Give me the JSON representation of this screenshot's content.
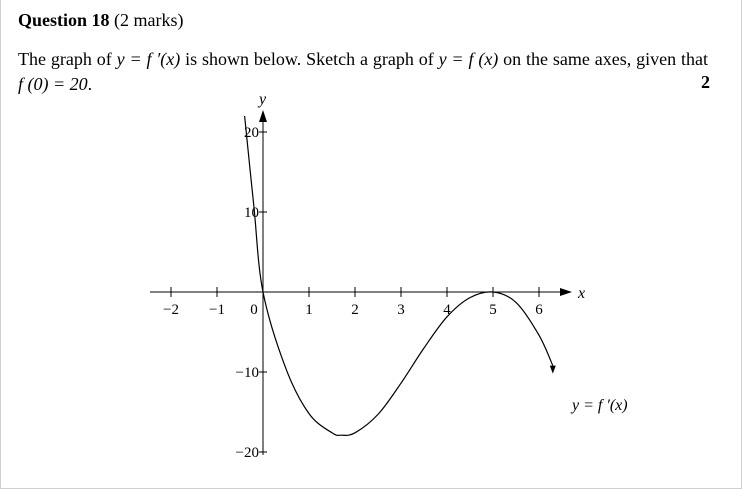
{
  "question": {
    "title_bold": "Question 18",
    "title_marks": "(2 marks)",
    "text_part1": "The graph of ",
    "expr_fprime": "y = f ′(x)",
    "text_part2": " is shown below. Sketch a graph of ",
    "expr_f": "y = f (x)",
    "text_part3": " on the same axes, given that ",
    "expr_condition": "f (0) = 20",
    "text_part4": ".",
    "marks_value": "2"
  },
  "chart_data": {
    "type": "line",
    "xlabel": "x",
    "ylabel": "y",
    "x_ticks": [
      -2,
      -1,
      0,
      1,
      2,
      3,
      4,
      5,
      6
    ],
    "x_tick_labels": [
      "−2",
      "−1",
      "0",
      "1",
      "2",
      "3",
      "4",
      "5",
      "6"
    ],
    "y_ticks": [
      20,
      10,
      -10,
      -20
    ],
    "y_tick_labels": [
      "20",
      "10",
      "−10",
      "−20"
    ],
    "xlim": [
      -2.3,
      6.7
    ],
    "ylim": [
      -22,
      22
    ],
    "series": [
      {
        "name": "y = f ′(x)",
        "function": "0.5 * (x + 0.1) * (x - 5)^2 ... approx cubic through (0,0) double root at 5",
        "x": [
          -0.4,
          -0.2,
          0,
          0.5,
          1,
          1.5,
          1.7,
          2,
          2.5,
          3,
          3.5,
          4,
          4.5,
          5,
          5.5,
          6,
          6.3
        ],
        "y": [
          22,
          10.8,
          0,
          -9.6,
          -15.2,
          -17.6,
          -17.9,
          -17.6,
          -15.3,
          -11.4,
          -7.0,
          -3.1,
          -0.7,
          0,
          -1.3,
          -5.4,
          -9.2
        ]
      }
    ]
  }
}
